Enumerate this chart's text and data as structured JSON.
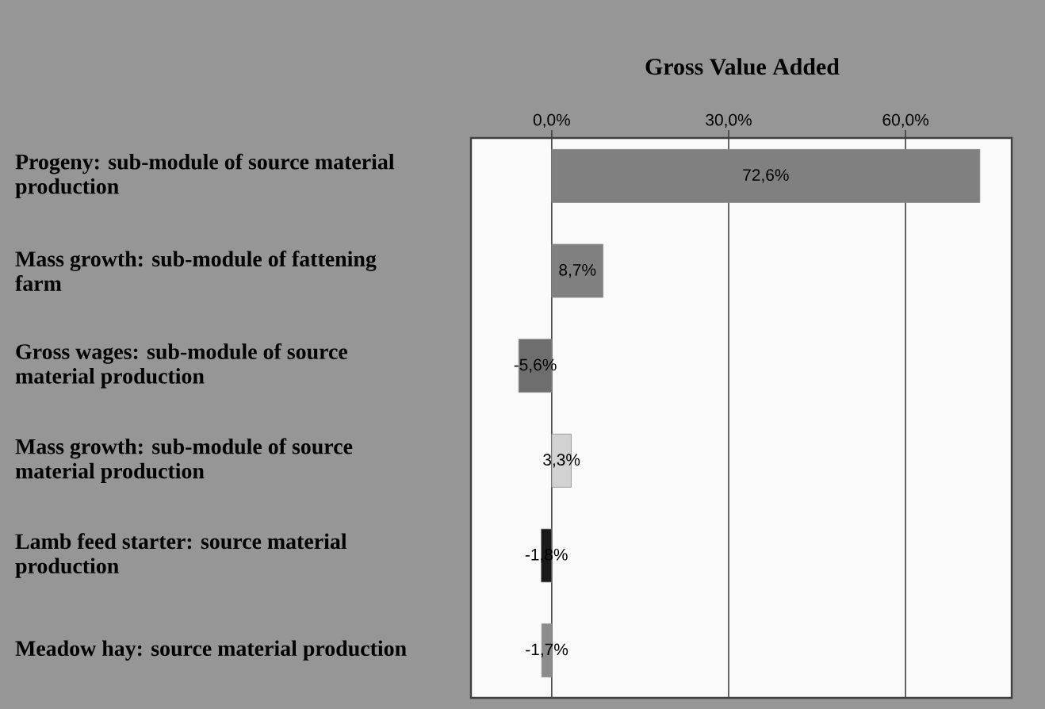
{
  "chart_data": {
    "type": "bar",
    "orientation": "horizontal",
    "title": "Gross Value Added",
    "categories": [
      "Progeny: sub-module of source material production",
      "Mass growth: sub-module of fattening farm",
      "Gross wages: sub-module of source material production",
      "Mass growth: sub-module of source material production",
      "Lamb feed starter: source material production",
      "Meadow hay: source material production"
    ],
    "values": [
      72.6,
      8.7,
      -5.6,
      3.3,
      -1.8,
      -1.7
    ],
    "colors": [
      "#808080",
      "#808080",
      "#6e6e6e",
      "#d2d2d2",
      "#1a1a1a",
      "#8c8c8c"
    ],
    "value_labels": [
      "72,6%",
      "8,7%",
      "-5,6%",
      "3,3%",
      "-1,8%",
      "-1,7%"
    ],
    "xlim": [
      -13.7,
      78
    ],
    "xticks": [
      {
        "value": 0,
        "label": "0,0%"
      },
      {
        "value": 30,
        "label": "30,0%"
      },
      {
        "value": 60,
        "label": "60,0%"
      }
    ],
    "grid": "x"
  }
}
